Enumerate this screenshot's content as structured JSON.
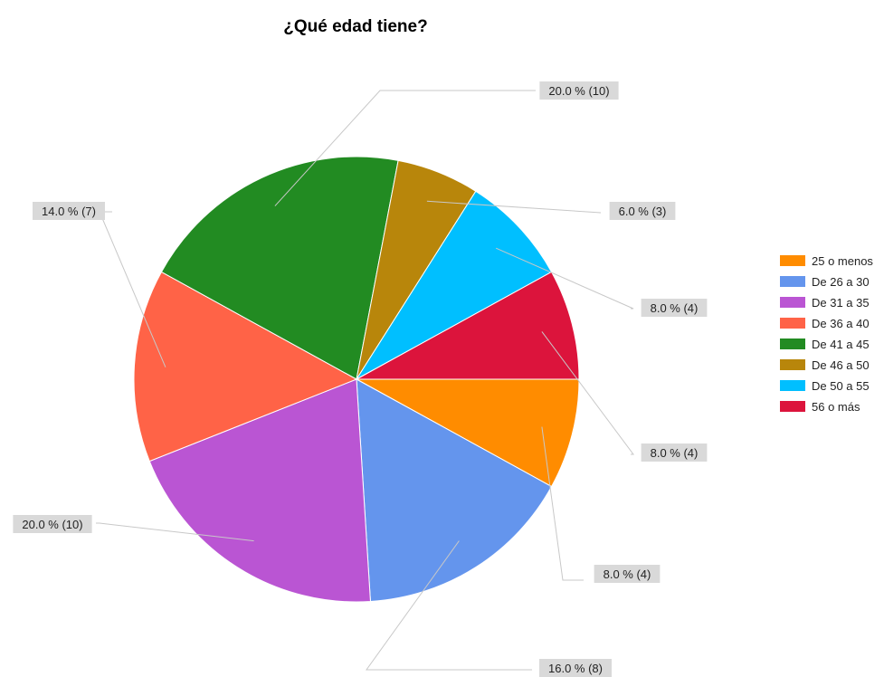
{
  "chart_data": {
    "type": "pie",
    "title": "¿Qué edad tiene?",
    "series": [
      {
        "name": "25 o menos",
        "value": 4,
        "percent": 8.0,
        "label": "8.0 % (4)",
        "color": "#ff8c00"
      },
      {
        "name": "De 26 a 30",
        "value": 8,
        "percent": 16.0,
        "label": "16.0 % (8)",
        "color": "#6495ed"
      },
      {
        "name": "De 31 a 35",
        "value": 10,
        "percent": 20.0,
        "label": "20.0 % (10)",
        "color": "#ba55d3"
      },
      {
        "name": "De 36 a 40",
        "value": 7,
        "percent": 14.0,
        "label": "14.0 % (7)",
        "color": "#ff6347"
      },
      {
        "name": "De 41 a 45",
        "value": 10,
        "percent": 20.0,
        "label": "20.0 % (10)",
        "color": "#228b22"
      },
      {
        "name": "De 46 a 50",
        "value": 3,
        "percent": 6.0,
        "label": "6.0 % (3)",
        "color": "#b8860b"
      },
      {
        "name": "De 50 a 55",
        "value": 4,
        "percent": 8.0,
        "label": "8.0 % (4)",
        "color": "#00bfff"
      },
      {
        "name": "56 o más",
        "value": 4,
        "percent": 8.0,
        "label": "8.0 % (4)",
        "color": "#dc143c"
      }
    ],
    "legend_position": "right",
    "label_background": "#d9d9d9",
    "leader_line_color": "#c8c8c8"
  }
}
